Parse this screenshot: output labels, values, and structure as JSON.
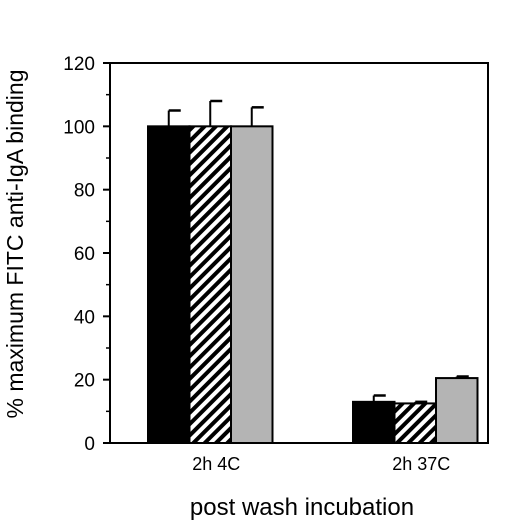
{
  "chart_data": {
    "type": "bar",
    "title": "",
    "xlabel": "post wash incubation",
    "ylabel": "% maximum FITC anti-IgA binding",
    "ylim": [
      0,
      120
    ],
    "yticks": [
      0,
      20,
      40,
      60,
      80,
      100,
      120
    ],
    "categories": [
      "2h 4C",
      "2h 37C"
    ],
    "series": [
      {
        "fill": "solid-black",
        "color": "#000000",
        "values": [
          100,
          13
        ],
        "errors": [
          5,
          2
        ]
      },
      {
        "fill": "diagonal-hatch",
        "color": "#000000",
        "values": [
          100,
          12.5
        ],
        "errors": [
          8,
          0.5
        ]
      },
      {
        "fill": "solid-gray",
        "color": "#b4b4b4",
        "values": [
          100,
          20.5
        ],
        "errors": [
          6,
          0.5
        ]
      }
    ],
    "grid": false,
    "legend": "none"
  }
}
